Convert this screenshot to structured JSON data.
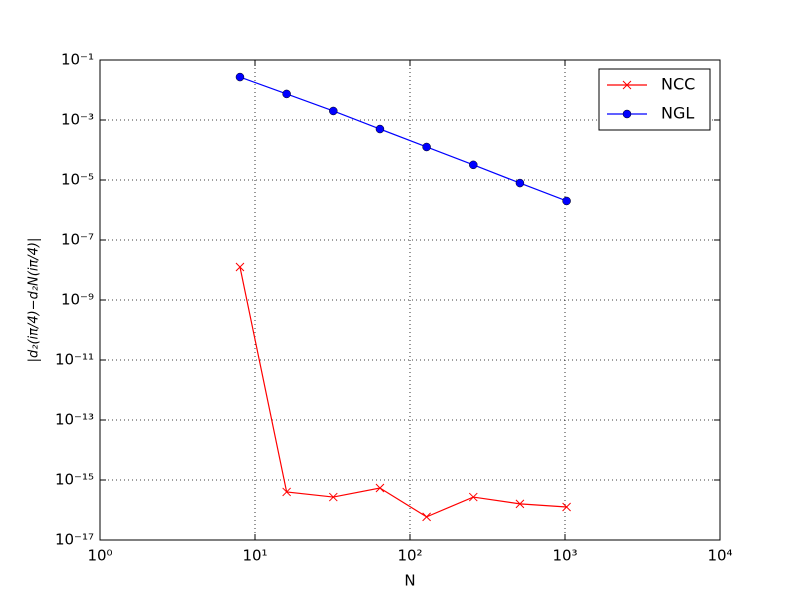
{
  "chart_data": {
    "type": "line",
    "x_label": "N",
    "y_label": "|d₂(iπ/4)−d₂N(iπ/4)|",
    "x": [
      8,
      16,
      32,
      64,
      128,
      256,
      512,
      1024
    ],
    "series": [
      {
        "name": "NCC",
        "color": "#ff0000",
        "marker": "x",
        "values": [
          1.26e-08,
          4e-16,
          2.7e-16,
          5.4e-16,
          5.9e-17,
          2.7e-16,
          1.6e-16,
          1.26e-16
        ]
      },
      {
        "name": "NGL",
        "color": "#0000ff",
        "marker": "o",
        "values": [
          0.027,
          0.0074,
          0.002,
          0.0005,
          0.000126,
          3.2e-05,
          7.9e-06,
          2e-06
        ]
      }
    ],
    "xlog": true,
    "ylog": true,
    "grid": true,
    "legend": "upper right",
    "xlim": [
      1,
      10000
    ],
    "xticks": [
      {
        "value": 1,
        "label": "10⁰"
      },
      {
        "value": 10,
        "label": "10¹"
      },
      {
        "value": 100,
        "label": "10²"
      },
      {
        "value": 1000,
        "label": "10³"
      },
      {
        "value": 10000,
        "label": "10⁴"
      }
    ],
    "ylim": [
      1e-17,
      0.1
    ],
    "yticks": [
      {
        "value": 1e-17,
        "label": "10⁻¹⁷"
      },
      {
        "value": 1e-15,
        "label": "10⁻¹⁵"
      },
      {
        "value": 1e-13,
        "label": "10⁻¹³"
      },
      {
        "value": 1e-11,
        "label": "10⁻¹¹"
      },
      {
        "value": 1e-09,
        "label": "10⁻⁹"
      },
      {
        "value": 1e-07,
        "label": "10⁻⁷"
      },
      {
        "value": 1e-05,
        "label": "10⁻⁵"
      },
      {
        "value": 0.001,
        "label": "10⁻³"
      },
      {
        "value": 0.1,
        "label": "10⁻¹"
      }
    ]
  }
}
